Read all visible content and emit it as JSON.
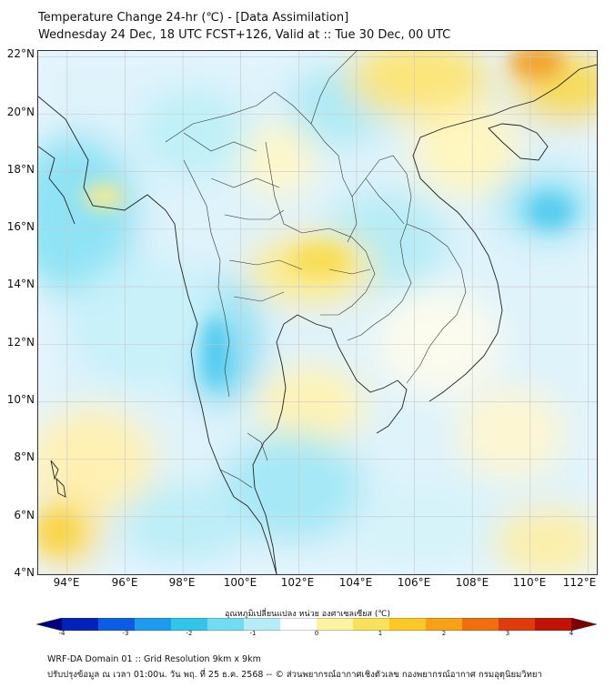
{
  "title": {
    "line1": "Temperature Change 24-hr (℃) - [Data Assimilation]",
    "line2": "Wednesday 24 Dec, 18 UTC FCST+126, Valid at :: Tue 30 Dec, 00 UTC"
  },
  "map": {
    "lat_labels": [
      "22°N",
      "20°N",
      "18°N",
      "16°N",
      "14°N",
      "12°N",
      "10°N",
      "8°N",
      "6°N",
      "4°N"
    ],
    "lon_labels": [
      "94°E",
      "96°E",
      "98°E",
      "100°E",
      "102°E",
      "104°E",
      "106°E",
      "108°E",
      "110°E",
      "112°E"
    ],
    "lat_values": [
      22,
      20,
      18,
      16,
      14,
      12,
      10,
      8,
      6,
      4
    ],
    "lon_values": [
      94,
      96,
      98,
      100,
      102,
      104,
      106,
      108,
      110,
      112
    ],
    "extent": {
      "lon_min": 93.0,
      "lon_max": 112.3,
      "lat_min": 4.0,
      "lat_max": 22.2
    }
  },
  "colorbar": {
    "title": "อุณหภูมิเปลี่ยนแปลง หน่วย องศาเซลเซียส (℃)",
    "ticks": [
      "-4",
      "-3",
      "-2",
      "-1",
      "0",
      "1",
      "2",
      "3",
      "4"
    ],
    "range": [
      -4,
      4
    ],
    "colors": [
      "#00007f",
      "#0022b8",
      "#0a5ee6",
      "#1c9cf0",
      "#2fc6ec",
      "#72dcf2",
      "#b5ecf6",
      "#ffffff",
      "#fbf3a2",
      "#f8e25c",
      "#f9c824",
      "#f8a114",
      "#f06f0c",
      "#e03c0a",
      "#c01306",
      "#7f0000"
    ]
  },
  "footer": {
    "line1": "WRF-DA Domain 01 :: Grid Resolution 9km x 9km",
    "line2": "ปรับปรุงข้อมูล ณ เวลา 01:00น. วัน พฤ. ที่ 25 ธ.ค. 2568 -- © ส่วนพยากรณ์อากาศเชิงตัวเลข กองพยากรณ์อากาศ กรมอุตุนิยมวิทยา"
  }
}
